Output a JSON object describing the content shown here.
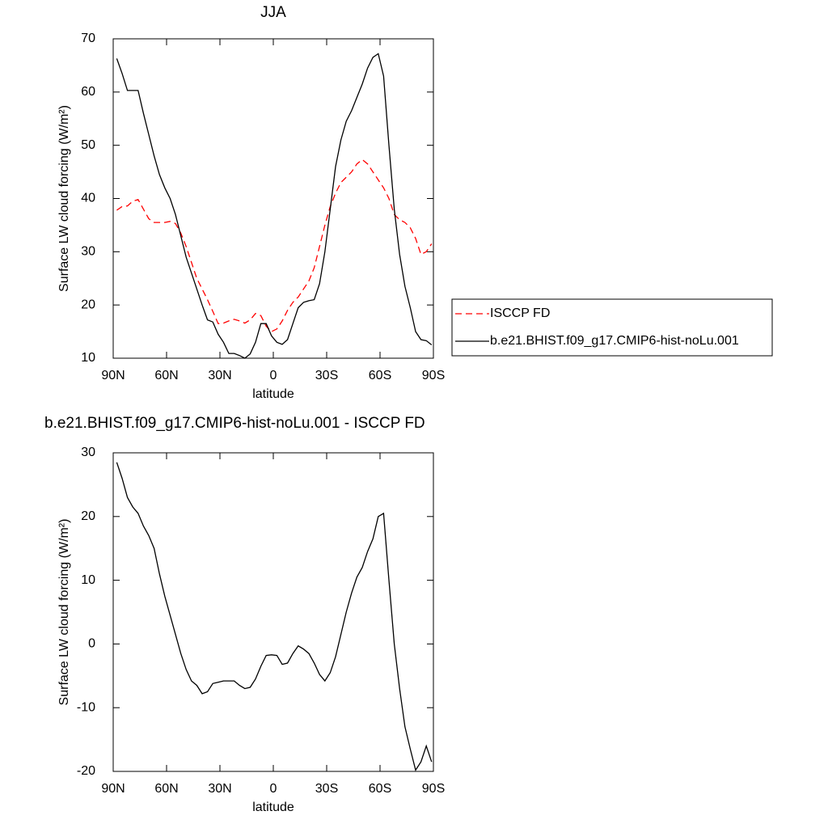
{
  "chart_data": [
    {
      "type": "line",
      "title": "JJA",
      "xlabel": "latitude",
      "ylabel": "Surface LW cloud forcing (W/m²)",
      "x": [
        88,
        85,
        82,
        79,
        76,
        73,
        70,
        67,
        64,
        61,
        58,
        55,
        52,
        49,
        46,
        43,
        40,
        37,
        34,
        31,
        28,
        25,
        22,
        19,
        16,
        13,
        10,
        7,
        4,
        1,
        -2,
        -5,
        -8,
        -11,
        -14,
        -17,
        -20,
        -23,
        -26,
        -29,
        -32,
        -35,
        -38,
        -41,
        -44,
        -47,
        -50,
        -53,
        -56,
        -59,
        -62,
        -65,
        -68,
        -71,
        -74,
        -77,
        -80,
        -83,
        -86,
        -89
      ],
      "series": [
        {
          "name": "ISCCP FD",
          "color": "#ff0000",
          "dash": true,
          "values": [
            37.8,
            38.5,
            38.6,
            39.5,
            39.8,
            38,
            36.2,
            35.5,
            35.5,
            35.5,
            35.7,
            35.3,
            33.5,
            31,
            28,
            25,
            23,
            21,
            18.8,
            16.5,
            16.6,
            17,
            17.3,
            17,
            16.6,
            17.2,
            18.4,
            18,
            16,
            15,
            15.5,
            17,
            19,
            20.5,
            21.5,
            23,
            24.5,
            27,
            31,
            35,
            38.5,
            41,
            43,
            44,
            45,
            46.5,
            47.3,
            46.5,
            45,
            43.5,
            42,
            40,
            37,
            36,
            35.5,
            34.5,
            32.5,
            29.5,
            30,
            31.5
          ]
        },
        {
          "name": "b.e21.BHIST.f09_g17.CMIP6-hist-noLu.001",
          "color": "#000000",
          "dash": false,
          "values": [
            66.3,
            63.5,
            60.3,
            60.3,
            60.3,
            56,
            52,
            48,
            44.5,
            42,
            40,
            37,
            33,
            29,
            26,
            23,
            20,
            17.2,
            16.8,
            14.5,
            13,
            10.9,
            10.9,
            10.5,
            10,
            10.8,
            13,
            16.5,
            16.5,
            14.2,
            13,
            12.6,
            13.5,
            16.5,
            19.5,
            20.5,
            20.8,
            21,
            24,
            30,
            38,
            46,
            51,
            54.5,
            56.5,
            59,
            61.5,
            64.5,
            66.5,
            67.2,
            63,
            50,
            38,
            29.5,
            23.5,
            19.5,
            15,
            13.5,
            13.3,
            12.5
          ]
        }
      ],
      "xlim": [
        90,
        -90
      ],
      "xticks": [
        {
          "value": 90,
          "label": "90N"
        },
        {
          "value": 60,
          "label": "60N"
        },
        {
          "value": 30,
          "label": "30N"
        },
        0,
        {
          "value": -30,
          "label": "30S"
        },
        {
          "value": -60,
          "label": "60S"
        },
        {
          "value": -90,
          "label": "90S"
        }
      ],
      "ylim": [
        10,
        70
      ],
      "yticks": [
        10,
        20,
        30,
        40,
        50,
        60,
        70
      ],
      "grid": false,
      "legend": "right"
    },
    {
      "type": "line",
      "title": "b.e21.BHIST.f09_g17.CMIP6-hist-noLu.001 - ISCCP FD",
      "xlabel": "latitude",
      "ylabel": "Surface LW cloud forcing (W/m²)",
      "x": [
        88,
        85,
        82,
        79,
        76,
        73,
        70,
        67,
        64,
        61,
        58,
        55,
        52,
        49,
        46,
        43,
        40,
        37,
        34,
        31,
        28,
        25,
        22,
        19,
        16,
        13,
        10,
        7,
        4,
        1,
        -2,
        -5,
        -8,
        -11,
        -14,
        -17,
        -20,
        -23,
        -26,
        -29,
        -32,
        -35,
        -38,
        -41,
        -44,
        -47,
        -50,
        -53,
        -56,
        -59,
        -62,
        -65,
        -68,
        -71,
        -74,
        -77,
        -80,
        -83,
        -86,
        -89
      ],
      "color": "#000000",
      "values": [
        28.5,
        26,
        23,
        21.5,
        20.5,
        18.5,
        17,
        15,
        11,
        7.5,
        4.5,
        1.5,
        -1.5,
        -4,
        -5.8,
        -6.5,
        -7.8,
        -7.5,
        -6.2,
        -6,
        -5.8,
        -5.8,
        -5.8,
        -6.5,
        -7,
        -6.8,
        -5.5,
        -3.5,
        -1.8,
        -1.7,
        -1.8,
        -3.2,
        -3,
        -1.5,
        -0.3,
        -0.8,
        -1.5,
        -3,
        -4.8,
        -5.8,
        -4.5,
        -2,
        1.5,
        5,
        8,
        10.5,
        12,
        14.5,
        16.5,
        20,
        20.5,
        10,
        0,
        -7,
        -13,
        -16.5,
        -19.8,
        -18.5,
        -16,
        -18.5
      ],
      "xlim": [
        90,
        -90
      ],
      "xticks": [
        {
          "value": 90,
          "label": "90N"
        },
        {
          "value": 60,
          "label": "60N"
        },
        {
          "value": 30,
          "label": "30N"
        },
        0,
        {
          "value": -30,
          "label": "30S"
        },
        {
          "value": -60,
          "label": "60S"
        },
        {
          "value": -90,
          "label": "90S"
        }
      ],
      "ylim": [
        -20,
        30
      ],
      "yticks": [
        -20,
        -10,
        0,
        10,
        20,
        30
      ],
      "grid": false
    }
  ]
}
